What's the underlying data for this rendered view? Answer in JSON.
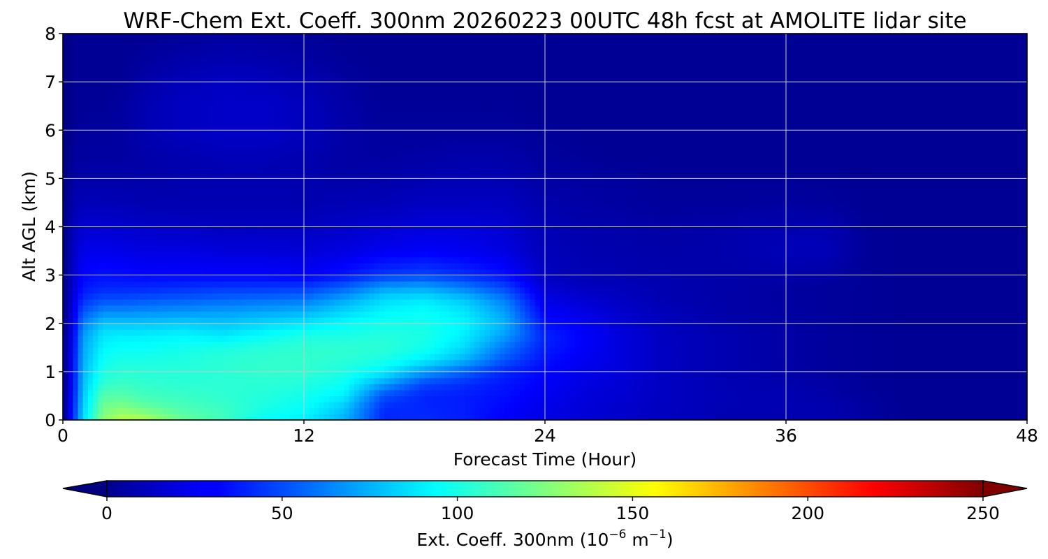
{
  "chart_data": {
    "type": "heatmap",
    "title": "WRF-Chem Ext. Coeff. 300nm  20260223 00UTC 48h fcst at AMOLITE lidar site",
    "xlabel": "Forecast Time (Hour)",
    "ylabel": "Alt AGL (km)",
    "xlim": [
      0,
      48
    ],
    "ylim": [
      0,
      8
    ],
    "xticks": [
      0,
      12,
      24,
      36,
      48
    ],
    "yticks": [
      0,
      1,
      2,
      3,
      4,
      5,
      6,
      7,
      8
    ],
    "grid": true,
    "colormap": "jet",
    "colorbar": {
      "label_main": "Ext. Coeff. 300nm  (10",
      "label_exp1": "−6",
      "label_mid": " m",
      "label_exp2": "−1",
      "label_end": ")",
      "range": [
        0,
        250
      ],
      "ticks": [
        0,
        50,
        100,
        150,
        200,
        250
      ],
      "extend": "both",
      "orientation": "horizontal"
    },
    "time_hours": [
      0,
      0.5,
      1,
      2,
      3,
      4,
      6,
      8,
      10,
      12,
      14,
      16,
      18,
      20,
      22,
      24,
      26,
      28,
      30,
      33,
      36,
      38,
      40,
      42,
      45,
      48
    ],
    "altitude_km": [
      0,
      0.25,
      0.5,
      0.75,
      1,
      1.25,
      1.5,
      1.75,
      2,
      2.25,
      2.5,
      2.75,
      3,
      3.5,
      4,
      4.5,
      5,
      5.5,
      6,
      6.5,
      7,
      7.5,
      8
    ],
    "values_by_altitude": [
      [
        0,
        40,
        85,
        128,
        140,
        138,
        120,
        110,
        95,
        90,
        75,
        40,
        42,
        38,
        30,
        25,
        20,
        18,
        15,
        12,
        12,
        12,
        8,
        5,
        5,
        5
      ],
      [
        0,
        38,
        82,
        122,
        126,
        120,
        112,
        108,
        100,
        95,
        80,
        42,
        40,
        38,
        32,
        26,
        22,
        18,
        16,
        13,
        12,
        12,
        8,
        5,
        5,
        5
      ],
      [
        0,
        35,
        80,
        115,
        115,
        110,
        108,
        105,
        102,
        98,
        90,
        50,
        40,
        38,
        34,
        28,
        22,
        20,
        16,
        13,
        12,
        10,
        7,
        5,
        5,
        5
      ],
      [
        0,
        33,
        78,
        105,
        108,
        106,
        104,
        104,
        104,
        102,
        96,
        70,
        48,
        42,
        36,
        30,
        24,
        20,
        16,
        13,
        11,
        9,
        6,
        5,
        5,
        5
      ],
      [
        0,
        32,
        76,
        100,
        104,
        103,
        103,
        104,
        106,
        105,
        100,
        90,
        70,
        55,
        40,
        32,
        26,
        22,
        16,
        12,
        10,
        8,
        6,
        5,
        5,
        5
      ],
      [
        0,
        32,
        74,
        96,
        100,
        100,
        101,
        104,
        106,
        106,
        104,
        100,
        90,
        75,
        52,
        35,
        28,
        22,
        16,
        12,
        9,
        7,
        6,
        5,
        5,
        5
      ],
      [
        0,
        30,
        72,
        92,
        95,
        95,
        98,
        100,
        103,
        105,
        105,
        104,
        98,
        85,
        60,
        38,
        30,
        22,
        16,
        12,
        9,
        7,
        6,
        5,
        5,
        5
      ],
      [
        0,
        28,
        70,
        88,
        90,
        90,
        92,
        88,
        95,
        100,
        100,
        102,
        100,
        90,
        70,
        40,
        30,
        22,
        16,
        12,
        9,
        7,
        6,
        5,
        5,
        5
      ],
      [
        0,
        26,
        62,
        80,
        80,
        80,
        82,
        80,
        84,
        88,
        94,
        98,
        98,
        92,
        75,
        35,
        28,
        20,
        15,
        11,
        9,
        7,
        6,
        5,
        5,
        5
      ],
      [
        0,
        24,
        52,
        65,
        65,
        66,
        68,
        70,
        72,
        75,
        84,
        92,
        95,
        88,
        70,
        30,
        24,
        18,
        14,
        10,
        8,
        7,
        6,
        5,
        5,
        5
      ],
      [
        0,
        22,
        42,
        50,
        50,
        52,
        54,
        56,
        58,
        60,
        72,
        85,
        88,
        80,
        62,
        25,
        20,
        16,
        12,
        10,
        8,
        7,
        6,
        5,
        5,
        5
      ],
      [
        0,
        20,
        36,
        40,
        40,
        40,
        42,
        44,
        44,
        45,
        55,
        70,
        72,
        62,
        48,
        20,
        16,
        14,
        12,
        10,
        8,
        7,
        6,
        5,
        5,
        5
      ],
      [
        0,
        18,
        32,
        35,
        34,
        33,
        33,
        32,
        32,
        30,
        36,
        45,
        48,
        42,
        35,
        16,
        13,
        12,
        11,
        10,
        10,
        9,
        6,
        5,
        5,
        5
      ],
      [
        0,
        16,
        26,
        26,
        25,
        24,
        24,
        22,
        22,
        21,
        24,
        28,
        30,
        28,
        24,
        14,
        12,
        11,
        10,
        11,
        14,
        14,
        6,
        5,
        5,
        5
      ],
      [
        0,
        14,
        20,
        20,
        19,
        18,
        17,
        16,
        16,
        16,
        18,
        20,
        22,
        22,
        20,
        13,
        11,
        10,
        9,
        10,
        12,
        12,
        6,
        5,
        5,
        5
      ],
      [
        0,
        11,
        14,
        14,
        13,
        12,
        12,
        12,
        12,
        12,
        13,
        14,
        16,
        16,
        16,
        11,
        9,
        8,
        7,
        7,
        8,
        7,
        5,
        5,
        5,
        5
      ],
      [
        0,
        8,
        10,
        10,
        10,
        10,
        11,
        12,
        12,
        11,
        10,
        10,
        12,
        13,
        12,
        9,
        8,
        7,
        6,
        6,
        6,
        6,
        5,
        5,
        5,
        5
      ],
      [
        0,
        6,
        8,
        8,
        8,
        10,
        12,
        14,
        14,
        12,
        9,
        8,
        9,
        10,
        10,
        7,
        6,
        5,
        5,
        5,
        5,
        5,
        5,
        5,
        5,
        5
      ],
      [
        0,
        5,
        7,
        7,
        8,
        12,
        16,
        18,
        18,
        15,
        10,
        7,
        7,
        7,
        7,
        6,
        5,
        5,
        5,
        5,
        5,
        5,
        5,
        5,
        5,
        5
      ],
      [
        0,
        5,
        6,
        6,
        8,
        12,
        16,
        18,
        18,
        15,
        10,
        6,
        6,
        6,
        6,
        5,
        5,
        5,
        5,
        5,
        5,
        5,
        5,
        5,
        5,
        5
      ],
      [
        0,
        5,
        5,
        5,
        6,
        10,
        14,
        16,
        15,
        12,
        8,
        5,
        5,
        5,
        5,
        5,
        5,
        5,
        5,
        5,
        5,
        5,
        5,
        5,
        5,
        5
      ],
      [
        0,
        5,
        5,
        5,
        5,
        7,
        10,
        12,
        11,
        9,
        6,
        5,
        5,
        5,
        5,
        5,
        5,
        5,
        5,
        5,
        5,
        5,
        5,
        5,
        5,
        5
      ],
      [
        0,
        5,
        5,
        5,
        5,
        5,
        6,
        7,
        7,
        6,
        5,
        5,
        5,
        5,
        5,
        5,
        5,
        5,
        5,
        5,
        5,
        5,
        5,
        5,
        5,
        5
      ]
    ]
  }
}
